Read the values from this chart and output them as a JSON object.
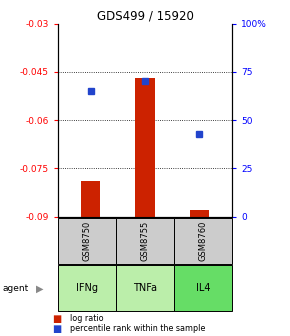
{
  "title": "GDS499 / 15920",
  "samples": [
    "GSM8750",
    "GSM8755",
    "GSM8760"
  ],
  "agents": [
    "IFNg",
    "TNFa",
    "IL4"
  ],
  "log_ratios": [
    -0.079,
    -0.047,
    -0.088
  ],
  "percentile_ranks": [
    65,
    70,
    43
  ],
  "ylim_left": [
    -0.09,
    -0.03
  ],
  "yticks_left": [
    -0.09,
    -0.075,
    -0.06,
    -0.045,
    -0.03
  ],
  "ytick_labels_left": [
    "-0.09",
    "-0.075",
    "-0.06",
    "-0.045",
    "-0.03"
  ],
  "ylim_right": [
    0,
    100
  ],
  "yticks_right": [
    0,
    25,
    50,
    75,
    100
  ],
  "ytick_labels_right": [
    "0",
    "25",
    "50",
    "75",
    "100%"
  ],
  "bar_color": "#cc2200",
  "dot_color": "#2244cc",
  "gray_bg": "#cccccc",
  "agent_colors": [
    "#bbeeaa",
    "#bbeeaa",
    "#66dd66"
  ],
  "bar_width": 0.35,
  "chart_bg": "#ffffff"
}
